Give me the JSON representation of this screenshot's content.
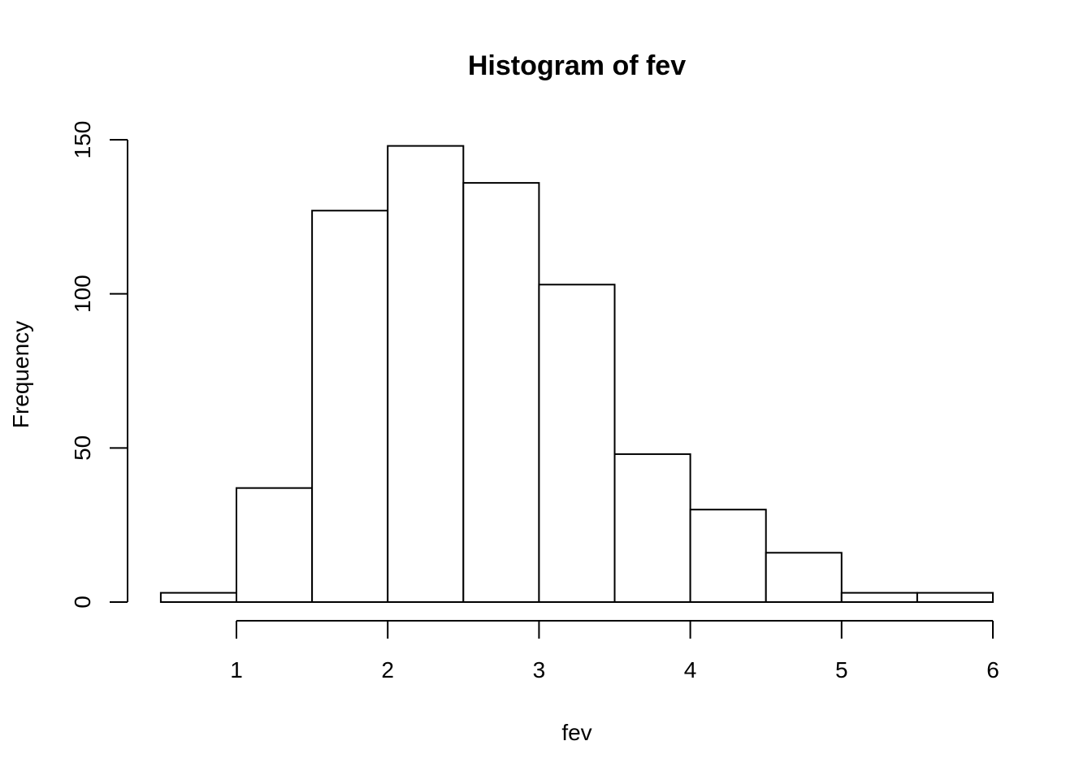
{
  "chart_data": {
    "type": "bar",
    "title": "Histogram of fev",
    "xlabel": "fev",
    "ylabel": "Frequency",
    "bin_edges": [
      0.5,
      1.0,
      1.5,
      2.0,
      2.5,
      3.0,
      3.5,
      4.0,
      4.5,
      5.0,
      5.5,
      6.0
    ],
    "values": [
      3,
      37,
      127,
      148,
      136,
      103,
      48,
      30,
      16,
      3,
      3
    ],
    "xlim": [
      0.5,
      6.0
    ],
    "ylim": [
      0,
      150
    ],
    "x_ticks": [
      1,
      2,
      3,
      4,
      5,
      6
    ],
    "x_tick_labels": [
      "1",
      "2",
      "3",
      "4",
      "5",
      "6"
    ],
    "y_ticks": [
      0,
      50,
      100,
      150
    ],
    "y_tick_labels": [
      "0",
      "50",
      "100",
      "150"
    ],
    "grid": false,
    "colors": {
      "bar_fill": "#ffffff",
      "bar_stroke": "#000000"
    }
  }
}
